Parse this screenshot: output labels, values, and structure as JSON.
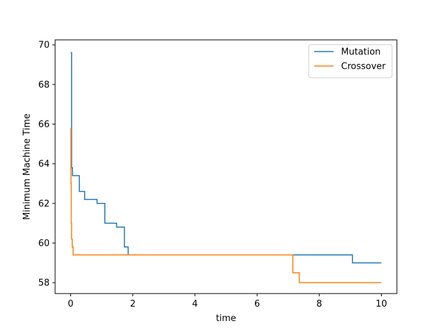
{
  "chart_data": {
    "type": "line",
    "xlabel": "time",
    "ylabel": "Minimum Machine Time",
    "xlim": [
      -0.5,
      10.5
    ],
    "ylim": [
      57.45,
      70.25
    ],
    "xticks": [
      0,
      2,
      4,
      6,
      8,
      10
    ],
    "yticks": [
      58,
      60,
      62,
      64,
      66,
      68,
      70
    ],
    "xtick_labels": [
      "0",
      "2",
      "4",
      "6",
      "8",
      "10"
    ],
    "ytick_labels": [
      "58",
      "60",
      "62",
      "64",
      "66",
      "68",
      "70"
    ],
    "grid": false,
    "legend_position": "top-right",
    "step": "post",
    "series": [
      {
        "name": "Mutation",
        "color": "#1f77b4",
        "x": [
          0,
          0.03,
          0.06,
          0.28,
          0.45,
          0.85,
          1.1,
          1.48,
          1.73,
          1.85,
          9.07,
          10
        ],
        "y": [
          69.6,
          63.8,
          63.4,
          62.6,
          62.2,
          62.0,
          61.0,
          60.8,
          59.8,
          59.4,
          59.0,
          59.0
        ]
      },
      {
        "name": "Crossover",
        "color": "#ff7f0e",
        "x": [
          0,
          0.01,
          0.02,
          0.03,
          0.05,
          0.08,
          7.15,
          7.36,
          10
        ],
        "y": [
          65.8,
          63.0,
          61.0,
          60.2,
          59.8,
          59.4,
          58.5,
          58.0,
          58.0
        ]
      }
    ]
  }
}
